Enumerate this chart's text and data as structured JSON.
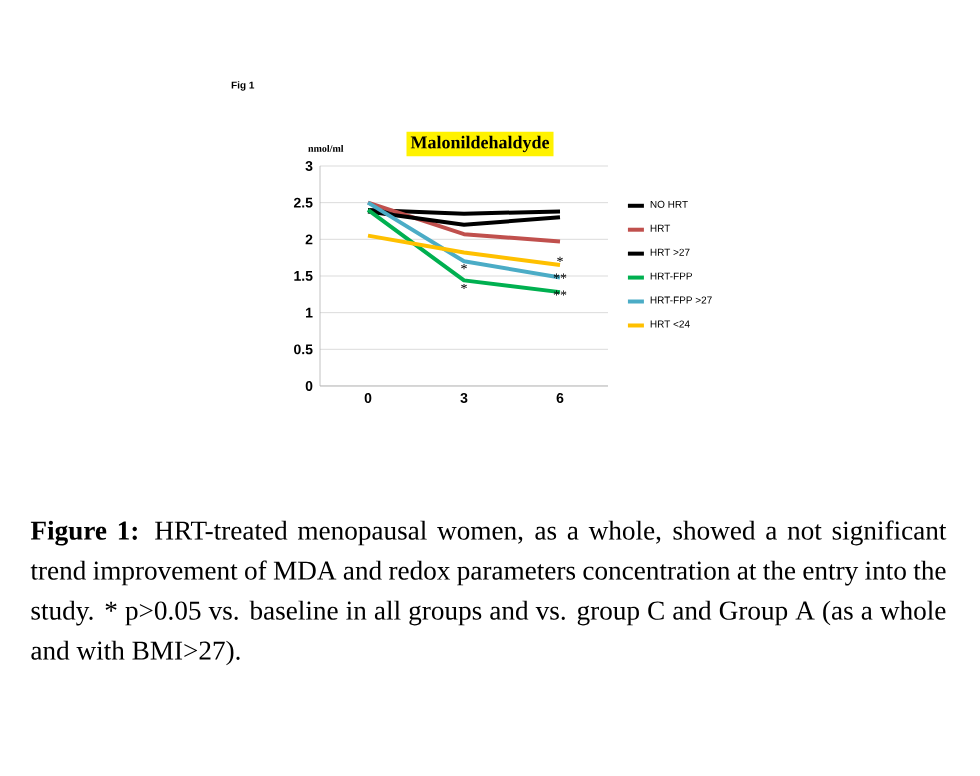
{
  "chart_data": {
    "type": "line",
    "title": "Malonildehaldyde",
    "ylabel": "nmol/ml",
    "categories": [
      "0",
      "3",
      "6"
    ],
    "series": [
      {
        "name": "NO HRT",
        "color": "#000000",
        "values": [
          2.4,
          2.35,
          2.38
        ]
      },
      {
        "name": "HRT",
        "color": "#c0504d",
        "values": [
          2.5,
          2.07,
          1.97
        ]
      },
      {
        "name": "HRT >27",
        "color": "#000000",
        "values": [
          2.38,
          2.2,
          2.3
        ]
      },
      {
        "name": "HRT-FPP",
        "color": "#00b050",
        "values": [
          2.4,
          1.44,
          1.28
        ]
      },
      {
        "name": "HRT-FPP >27",
        "color": "#4bacc6",
        "values": [
          2.5,
          1.7,
          1.48
        ]
      },
      {
        "name": "HRT <24",
        "color": "#ffc000",
        "values": [
          2.05,
          1.82,
          1.65
        ]
      }
    ],
    "ylim": [
      0,
      3
    ],
    "yticks": [
      0,
      0.5,
      1,
      1.5,
      2,
      2.5,
      3
    ],
    "grid": "y",
    "legend": "right",
    "marker": "none",
    "line_style": "solid",
    "annotations": [
      {
        "text": "*",
        "x": "3",
        "y": 1.6
      },
      {
        "text": "*",
        "x": "3",
        "y": 1.33
      },
      {
        "text": "*",
        "x": "6",
        "y": 1.7
      },
      {
        "text": "**",
        "x": "6",
        "y": 1.47
      },
      {
        "text": "**",
        "x": "6",
        "y": 1.24
      },
      "Fig 1",
      "**Figure 1:** HRT-treated menopausal women, as a whole, showed a not significant trend improvement of MDA and redox parameters concentration at the entry into the study. * p>0.05 vs. baseline in all groups and vs. group C and Group A (as a whole and with BMI>27)."
    ]
  }
}
